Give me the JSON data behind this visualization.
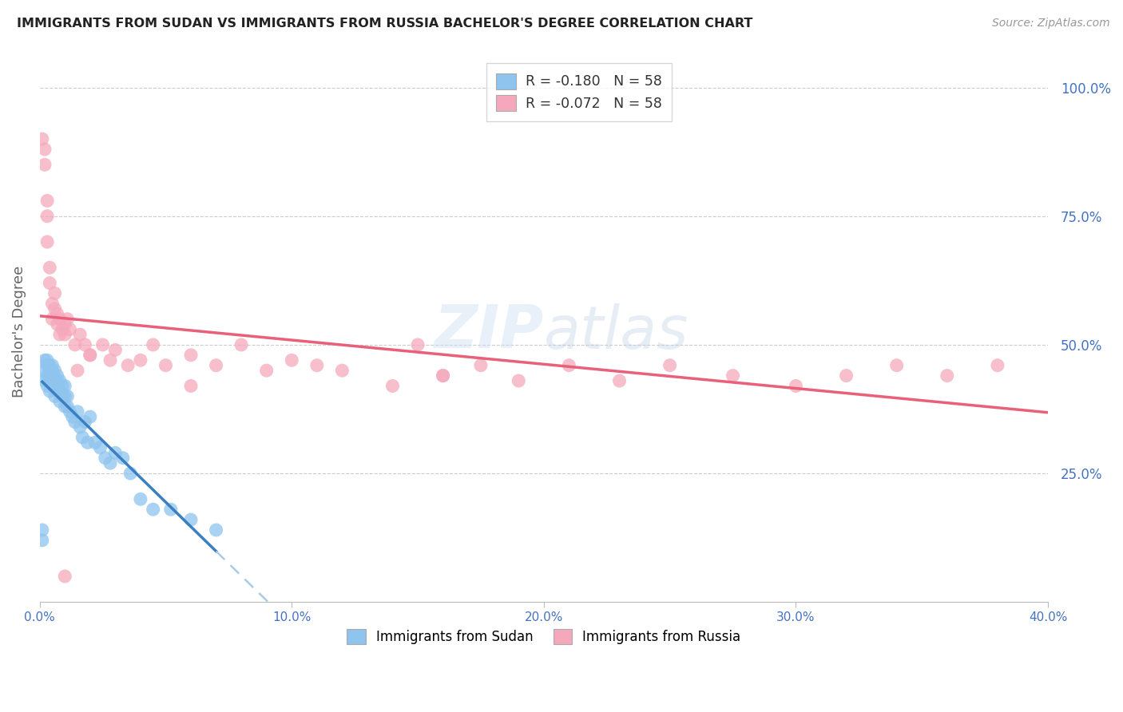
{
  "title": "IMMIGRANTS FROM SUDAN VS IMMIGRANTS FROM RUSSIA BACHELOR'S DEGREE CORRELATION CHART",
  "source": "Source: ZipAtlas.com",
  "ylabel": "Bachelor's Degree",
  "xlim": [
    0.0,
    0.4
  ],
  "ylim": [
    0.0,
    1.05
  ],
  "xticks": [
    0.0,
    0.1,
    0.2,
    0.3,
    0.4
  ],
  "xtick_labels": [
    "0.0%",
    "10.0%",
    "20.0%",
    "30.0%",
    "40.0%"
  ],
  "yticks_right": [
    0.25,
    0.5,
    0.75,
    1.0
  ],
  "ytick_labels_right": [
    "25.0%",
    "50.0%",
    "75.0%",
    "100.0%"
  ],
  "hgrid_vals": [
    0.25,
    0.5,
    0.75,
    1.0
  ],
  "sudan_color": "#8ec4ee",
  "russia_color": "#f5a8bc",
  "sudan_line_color": "#3a7fc1",
  "russia_line_color": "#e8607a",
  "dashed_color": "#a8cce8",
  "sudan_R": "-0.180",
  "russia_R": "-0.072",
  "N": "58",
  "legend_R_color": "#e05070",
  "legend_R_blue": "#3a7fc1",
  "tick_color": "#4472c4",
  "sudan_x": [
    0.001,
    0.001,
    0.002,
    0.002,
    0.002,
    0.003,
    0.003,
    0.003,
    0.003,
    0.004,
    0.004,
    0.004,
    0.004,
    0.004,
    0.005,
    0.005,
    0.005,
    0.005,
    0.005,
    0.006,
    0.006,
    0.006,
    0.006,
    0.007,
    0.007,
    0.007,
    0.007,
    0.008,
    0.008,
    0.008,
    0.009,
    0.009,
    0.01,
    0.01,
    0.01,
    0.011,
    0.011,
    0.012,
    0.013,
    0.014,
    0.015,
    0.016,
    0.017,
    0.018,
    0.019,
    0.02,
    0.022,
    0.024,
    0.026,
    0.028,
    0.03,
    0.033,
    0.036,
    0.04,
    0.045,
    0.052,
    0.06,
    0.07
  ],
  "sudan_y": [
    0.14,
    0.12,
    0.43,
    0.45,
    0.47,
    0.42,
    0.44,
    0.46,
    0.47,
    0.41,
    0.43,
    0.45,
    0.44,
    0.46,
    0.42,
    0.44,
    0.43,
    0.45,
    0.46,
    0.4,
    0.42,
    0.43,
    0.45,
    0.41,
    0.42,
    0.43,
    0.44,
    0.39,
    0.41,
    0.43,
    0.4,
    0.42,
    0.38,
    0.4,
    0.42,
    0.38,
    0.4,
    0.37,
    0.36,
    0.35,
    0.37,
    0.34,
    0.32,
    0.35,
    0.31,
    0.36,
    0.31,
    0.3,
    0.28,
    0.27,
    0.29,
    0.28,
    0.25,
    0.2,
    0.18,
    0.18,
    0.16,
    0.14
  ],
  "russia_x": [
    0.001,
    0.002,
    0.002,
    0.003,
    0.003,
    0.003,
    0.004,
    0.004,
    0.005,
    0.005,
    0.006,
    0.006,
    0.007,
    0.007,
    0.008,
    0.008,
    0.009,
    0.01,
    0.01,
    0.011,
    0.012,
    0.014,
    0.016,
    0.018,
    0.02,
    0.025,
    0.028,
    0.03,
    0.035,
    0.04,
    0.045,
    0.05,
    0.06,
    0.07,
    0.08,
    0.09,
    0.1,
    0.11,
    0.12,
    0.14,
    0.15,
    0.16,
    0.175,
    0.19,
    0.21,
    0.23,
    0.25,
    0.275,
    0.3,
    0.32,
    0.34,
    0.36,
    0.38,
    0.01,
    0.015,
    0.02,
    0.06,
    0.16
  ],
  "russia_y": [
    0.9,
    0.88,
    0.85,
    0.78,
    0.75,
    0.7,
    0.65,
    0.62,
    0.58,
    0.55,
    0.6,
    0.57,
    0.54,
    0.56,
    0.55,
    0.52,
    0.53,
    0.54,
    0.52,
    0.55,
    0.53,
    0.5,
    0.52,
    0.5,
    0.48,
    0.5,
    0.47,
    0.49,
    0.46,
    0.47,
    0.5,
    0.46,
    0.48,
    0.46,
    0.5,
    0.45,
    0.47,
    0.46,
    0.45,
    0.42,
    0.5,
    0.44,
    0.46,
    0.43,
    0.46,
    0.43,
    0.46,
    0.44,
    0.42,
    0.44,
    0.46,
    0.44,
    0.46,
    0.05,
    0.45,
    0.48,
    0.42,
    0.44
  ]
}
